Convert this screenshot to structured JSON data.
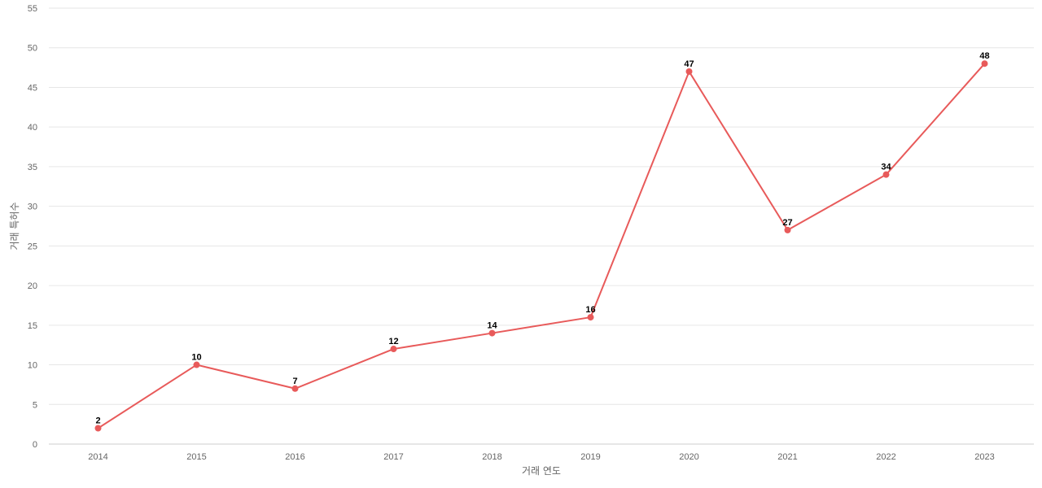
{
  "chart_data": {
    "type": "line",
    "title": "",
    "xlabel": "거래 연도",
    "ylabel": "거래 특허수",
    "categories": [
      "2014",
      "2015",
      "2016",
      "2017",
      "2018",
      "2019",
      "2020",
      "2021",
      "2022",
      "2023"
    ],
    "series": [
      {
        "values": [
          2,
          10,
          7,
          12,
          14,
          16,
          47,
          27,
          34,
          48
        ],
        "color": "#e85a5a"
      }
    ],
    "ylim": [
      0,
      55
    ],
    "yticks": [
      0,
      5,
      10,
      15,
      20,
      25,
      30,
      35,
      40,
      45,
      50,
      55
    ],
    "grid": true,
    "legend": "none",
    "data_labels": true
  }
}
